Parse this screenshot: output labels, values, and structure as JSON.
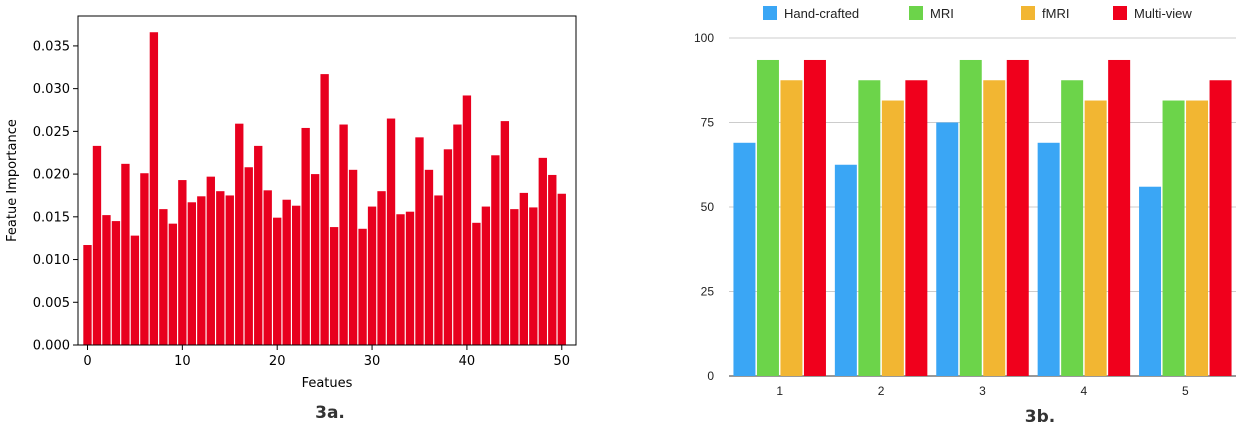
{
  "chart_data": [
    {
      "type": "bar",
      "caption": "3a.",
      "xlabel": "Featues",
      "ylabel": "Featue Importance",
      "xlim": [
        -1,
        51.5
      ],
      "ylim": [
        0,
        0.0385
      ],
      "xticks": [
        0,
        10,
        20,
        30,
        40,
        50
      ],
      "yticks": [
        0.0,
        0.005,
        0.01,
        0.015,
        0.02,
        0.025,
        0.03,
        0.035
      ],
      "ytick_labels": [
        "0.000",
        "0.005",
        "0.010",
        "0.015",
        "0.020",
        "0.025",
        "0.030",
        "0.035"
      ],
      "color": "#e8001e",
      "x": [
        0,
        1,
        2,
        3,
        4,
        5,
        6,
        7,
        8,
        9,
        10,
        11,
        12,
        13,
        14,
        15,
        16,
        17,
        18,
        19,
        20,
        21,
        22,
        23,
        24,
        25,
        26,
        27,
        28,
        29,
        30,
        31,
        32,
        33,
        34,
        35,
        36,
        37,
        38,
        39,
        40,
        41,
        42,
        43,
        44,
        45,
        46,
        47,
        48,
        49,
        50
      ],
      "values": [
        0.0117,
        0.0233,
        0.0152,
        0.0145,
        0.0212,
        0.0128,
        0.0201,
        0.0366,
        0.0159,
        0.0142,
        0.0193,
        0.0167,
        0.0174,
        0.0197,
        0.018,
        0.0175,
        0.0259,
        0.0208,
        0.0233,
        0.0181,
        0.0149,
        0.017,
        0.0163,
        0.0254,
        0.02,
        0.0317,
        0.0138,
        0.0258,
        0.0205,
        0.0136,
        0.0162,
        0.018,
        0.0265,
        0.0153,
        0.0156,
        0.0243,
        0.0205,
        0.0175,
        0.0229,
        0.0258,
        0.0292,
        0.0143,
        0.0162,
        0.0222,
        0.0262,
        0.0159,
        0.0178,
        0.0161,
        0.0219,
        0.0199,
        0.0177
      ],
      "grid": false
    },
    {
      "type": "bar",
      "caption": "3b.",
      "categories": [
        "1",
        "2",
        "3",
        "4",
        "5"
      ],
      "ylim": [
        0,
        100
      ],
      "yticks": [
        0,
        25,
        50,
        75,
        100
      ],
      "grid": true,
      "legend": "top",
      "series": [
        {
          "name": "Hand-crafted",
          "color": "#3aa6f5",
          "values": [
            69,
            62.5,
            75,
            69,
            56
          ]
        },
        {
          "name": "MRI",
          "color": "#6cd44a",
          "values": [
            93.5,
            87.5,
            93.5,
            87.5,
            81.5
          ]
        },
        {
          "name": "fMRI",
          "color": "#f2b632",
          "values": [
            87.5,
            81.5,
            87.5,
            81.5,
            81.5
          ]
        },
        {
          "name": "Multi-view",
          "color": "#f0001c",
          "values": [
            93.5,
            87.5,
            93.5,
            93.5,
            87.5
          ]
        }
      ]
    }
  ]
}
